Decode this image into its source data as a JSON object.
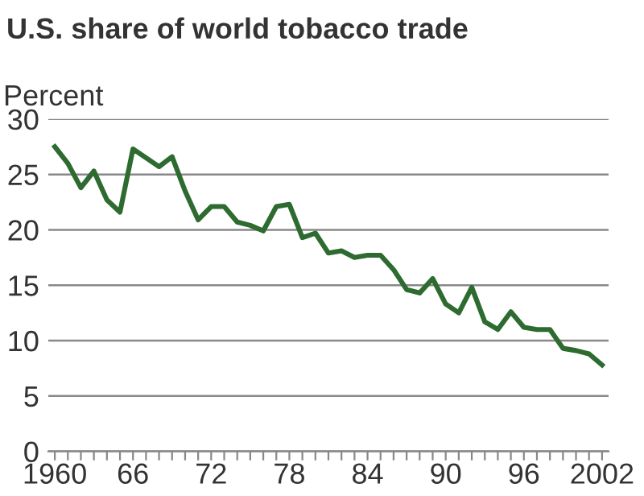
{
  "chart_data": {
    "type": "line",
    "title": "U.S. share of world tobacco trade",
    "ylabel": "Percent",
    "x": [
      1960,
      1961,
      1962,
      1963,
      1964,
      1965,
      1966,
      1967,
      1968,
      1969,
      1970,
      1971,
      1972,
      1973,
      1974,
      1975,
      1976,
      1977,
      1978,
      1979,
      1980,
      1981,
      1982,
      1983,
      1984,
      1985,
      1986,
      1987,
      1988,
      1989,
      1990,
      1991,
      1992,
      1993,
      1994,
      1995,
      1996,
      1997,
      1998,
      1999,
      2000,
      2001,
      2002
    ],
    "series": [
      {
        "color": "#2e6b30",
        "values": [
          27.5,
          26.0,
          23.8,
          25.3,
          22.7,
          21.6,
          27.3,
          26.5,
          25.7,
          26.6,
          23.5,
          20.9,
          22.1,
          22.1,
          20.7,
          20.4,
          19.9,
          22.1,
          22.3,
          19.3,
          19.7,
          17.9,
          18.1,
          17.5,
          17.7,
          17.7,
          16.4,
          14.6,
          14.3,
          15.6,
          13.3,
          12.5,
          14.8,
          11.7,
          11.0,
          12.6,
          11.2,
          11.0,
          11.0,
          9.3,
          9.1,
          8.8,
          7.8
        ]
      }
    ],
    "xlim": [
      1959.5,
      2002.5
    ],
    "xticks": [
      {
        "value": 1960,
        "label": "1960"
      },
      {
        "value": 1961,
        "label": null
      },
      {
        "value": 1962,
        "label": null
      },
      {
        "value": 1963,
        "label": null
      },
      {
        "value": 1964,
        "label": null
      },
      {
        "value": 1965,
        "label": null
      },
      {
        "value": 1966,
        "label": "66"
      },
      {
        "value": 1967,
        "label": null
      },
      {
        "value": 1968,
        "label": null
      },
      {
        "value": 1969,
        "label": null
      },
      {
        "value": 1970,
        "label": null
      },
      {
        "value": 1971,
        "label": null
      },
      {
        "value": 1972,
        "label": "72"
      },
      {
        "value": 1973,
        "label": null
      },
      {
        "value": 1974,
        "label": null
      },
      {
        "value": 1975,
        "label": null
      },
      {
        "value": 1976,
        "label": null
      },
      {
        "value": 1977,
        "label": null
      },
      {
        "value": 1978,
        "label": "78"
      },
      {
        "value": 1979,
        "label": null
      },
      {
        "value": 1980,
        "label": null
      },
      {
        "value": 1981,
        "label": null
      },
      {
        "value": 1982,
        "label": null
      },
      {
        "value": 1983,
        "label": null
      },
      {
        "value": 1984,
        "label": "84"
      },
      {
        "value": 1985,
        "label": null
      },
      {
        "value": 1986,
        "label": null
      },
      {
        "value": 1987,
        "label": null
      },
      {
        "value": 1988,
        "label": null
      },
      {
        "value": 1989,
        "label": null
      },
      {
        "value": 1990,
        "label": "90"
      },
      {
        "value": 1991,
        "label": null
      },
      {
        "value": 1992,
        "label": null
      },
      {
        "value": 1993,
        "label": null
      },
      {
        "value": 1994,
        "label": null
      },
      {
        "value": 1995,
        "label": null
      },
      {
        "value": 1996,
        "label": "96"
      },
      {
        "value": 1997,
        "label": null
      },
      {
        "value": 1998,
        "label": null
      },
      {
        "value": 1999,
        "label": null
      },
      {
        "value": 2000,
        "label": null
      },
      {
        "value": 2001,
        "label": null
      },
      {
        "value": 2002,
        "label": "2002"
      }
    ],
    "ylim": [
      0,
      30
    ],
    "yticks": [
      0,
      5,
      10,
      15,
      20,
      25,
      30
    ],
    "grid": "y",
    "marker": "none",
    "line_style": "solid"
  }
}
